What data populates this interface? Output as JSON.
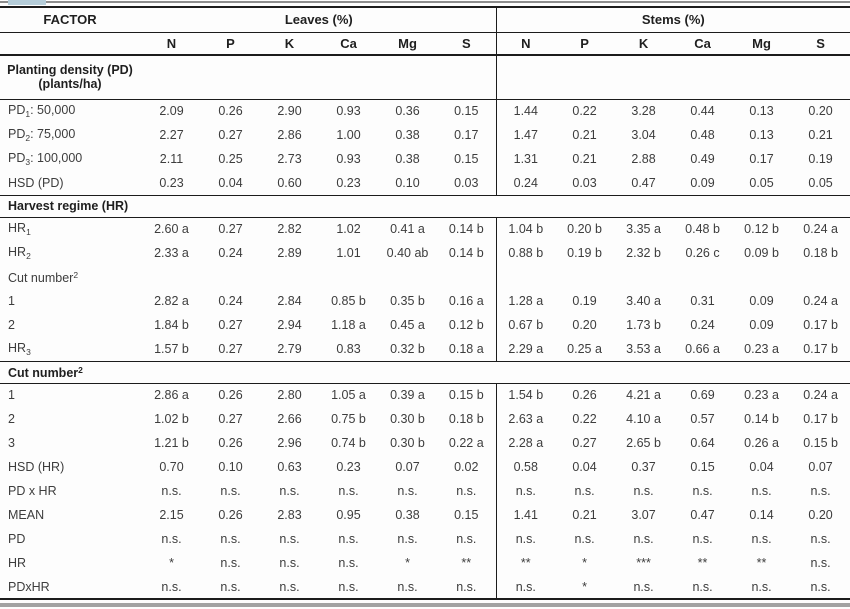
{
  "accents": {
    "tab_color": "#b5cdd9",
    "rule_color": "#1c1c1c",
    "bottom_bar_color": "#a2a2a2"
  },
  "table": {
    "factor_header": "FACTOR",
    "groups": [
      {
        "label": "Leaves (%)"
      },
      {
        "label": "Stems (%)"
      }
    ],
    "subcolumns": [
      "N",
      "P",
      "K",
      "Ca",
      "Mg",
      "S"
    ],
    "rows": [
      {
        "kind": "section-split",
        "line1": "Planting density (PD)",
        "line2": "(plants/ha)"
      },
      {
        "kind": "data",
        "label": {
          "base": "PD",
          "sub": "1",
          "rest": ":  50,000"
        },
        "cells": [
          "2.09",
          "0.26",
          "2.90",
          "0.93",
          "0.36",
          "0.15",
          "1.44",
          "0.22",
          "3.28",
          "0.44",
          "0.13",
          "0.20"
        ]
      },
      {
        "kind": "data",
        "label": {
          "base": "PD",
          "sub": "2",
          "rest": ":  75,000"
        },
        "cells": [
          "2.27",
          "0.27",
          "2.86",
          "1.00",
          "0.38",
          "0.17",
          "1.47",
          "0.21",
          "3.04",
          "0.48",
          "0.13",
          "0.21"
        ]
      },
      {
        "kind": "data",
        "label": {
          "base": "PD",
          "sub": "3",
          "rest": ": 100,000"
        },
        "cells": [
          "2.11",
          "0.25",
          "2.73",
          "0.93",
          "0.38",
          "0.15",
          "1.31",
          "0.21",
          "2.88",
          "0.49",
          "0.17",
          "0.19"
        ]
      },
      {
        "kind": "data",
        "border_bottom": true,
        "label": {
          "base": "HSD (PD)"
        },
        "cells": [
          "0.23",
          "0.04",
          "0.60",
          "0.23",
          "0.10",
          "0.03",
          "0.24",
          "0.03",
          "0.47",
          "0.09",
          "0.05",
          "0.05"
        ]
      },
      {
        "kind": "section-wide",
        "label": {
          "base": "Harvest regime (HR)"
        }
      },
      {
        "kind": "data",
        "label": {
          "base": "HR",
          "sub": "1"
        },
        "cells": [
          "2.60 a",
          "0.27",
          "2.82",
          "1.02",
          "0.41 a",
          "0.14 b",
          "1.04 b",
          "0.20 b",
          "3.35 a",
          "0.48 b",
          "0.12 b",
          "0.24 a"
        ]
      },
      {
        "kind": "data",
        "label": {
          "base": "HR",
          "sub": "2"
        },
        "cells": [
          "2.33 a",
          "0.24",
          "2.89",
          "1.01",
          "0.40 ab",
          "0.14 b",
          "0.88 b",
          "0.19 b",
          "2.32 b",
          "0.26 c",
          "0.09 b",
          "0.18 b"
        ]
      },
      {
        "kind": "data",
        "label": {
          "base": "Cut number",
          "sup": "2"
        },
        "cells": [
          "",
          "",
          "",
          "",
          "",
          "",
          "",
          "",
          "",
          "",
          "",
          ""
        ]
      },
      {
        "kind": "data",
        "label": {
          "base": "1"
        },
        "cells": [
          "2.82 a",
          "0.24",
          "2.84",
          "0.85 b",
          "0.35 b",
          "0.16 a",
          "1.28 a",
          "0.19",
          "3.40 a",
          "0.31",
          "0.09",
          "0.24 a"
        ]
      },
      {
        "kind": "data",
        "label": {
          "base": "2"
        },
        "cells": [
          "1.84 b",
          "0.27",
          "2.94",
          "1.18 a",
          "0.45 a",
          "0.12 b",
          "0.67 b",
          "0.20",
          "1.73 b",
          "0.24",
          "0.09",
          "0.17 b"
        ]
      },
      {
        "kind": "data",
        "border_bottom": true,
        "label": {
          "base": "HR",
          "sub": "3"
        },
        "cells": [
          "1.57 b",
          "0.27",
          "2.79",
          "0.83",
          "0.32 b",
          "0.18 a",
          "2.29 a",
          "0.25 a",
          "3.53 a",
          "0.66 a",
          "0.23 a",
          "0.17 b"
        ]
      },
      {
        "kind": "section-wide",
        "label": {
          "base": "Cut number",
          "sup": "2"
        }
      },
      {
        "kind": "data",
        "label": {
          "base": "1"
        },
        "cells": [
          "2.86 a",
          "0.26",
          "2.80",
          "1.05 a",
          "0.39 a",
          "0.15 b",
          "1.54 b",
          "0.26",
          "4.21 a",
          "0.69",
          "0.23 a",
          "0.24 a"
        ]
      },
      {
        "kind": "data",
        "label": {
          "base": "2"
        },
        "cells": [
          "1.02 b",
          "0.27",
          "2.66",
          "0.75 b",
          "0.30 b",
          "0.18 b",
          "2.63 a",
          "0.22",
          "4.10 a",
          "0.57",
          "0.14 b",
          "0.17 b"
        ]
      },
      {
        "kind": "data",
        "label": {
          "base": "3"
        },
        "cells": [
          "1.21 b",
          "0.26",
          "2.96",
          "0.74 b",
          "0.30 b",
          "0.22 a",
          "2.28 a",
          "0.27",
          "2.65 b",
          "0.64",
          "0.26 a",
          "0.15 b"
        ]
      },
      {
        "kind": "data",
        "label": {
          "base": "HSD (HR)"
        },
        "cells": [
          "0.70",
          "0.10",
          "0.63",
          "0.23",
          "0.07",
          "0.02",
          "0.58",
          "0.04",
          "0.37",
          "0.15",
          "0.04",
          "0.07"
        ]
      },
      {
        "kind": "data",
        "label": {
          "base": "PD x HR"
        },
        "cells": [
          "n.s.",
          "n.s.",
          "n.s.",
          "n.s.",
          "n.s.",
          "n.s.",
          "n.s.",
          "n.s.",
          "n.s.",
          "n.s.",
          "n.s.",
          "n.s."
        ]
      },
      {
        "kind": "data",
        "label": {
          "base": "MEAN"
        },
        "cells": [
          "2.15",
          "0.26",
          "2.83",
          "0.95",
          "0.38",
          "0.15",
          "1.41",
          "0.21",
          "3.07",
          "0.47",
          "0.14",
          "0.20"
        ]
      },
      {
        "kind": "data",
        "label": {
          "base": "PD"
        },
        "cells": [
          "n.s.",
          "n.s.",
          "n.s.",
          "n.s.",
          "n.s.",
          "n.s.",
          "n.s.",
          "n.s.",
          "n.s.",
          "n.s.",
          "n.s.",
          "n.s."
        ]
      },
      {
        "kind": "data",
        "label": {
          "base": "HR"
        },
        "cells": [
          "*",
          "n.s.",
          "n.s.",
          "n.s.",
          "*",
          "**",
          "**",
          "*",
          "***",
          "**",
          "**",
          "n.s."
        ]
      },
      {
        "kind": "data",
        "label": {
          "base": "PDxHR"
        },
        "cells": [
          "n.s.",
          "n.s.",
          "n.s.",
          "n.s.",
          "n.s.",
          "n.s.",
          "n.s.",
          "*",
          "n.s.",
          "n.s.",
          "n.s.",
          "n.s."
        ]
      }
    ]
  }
}
